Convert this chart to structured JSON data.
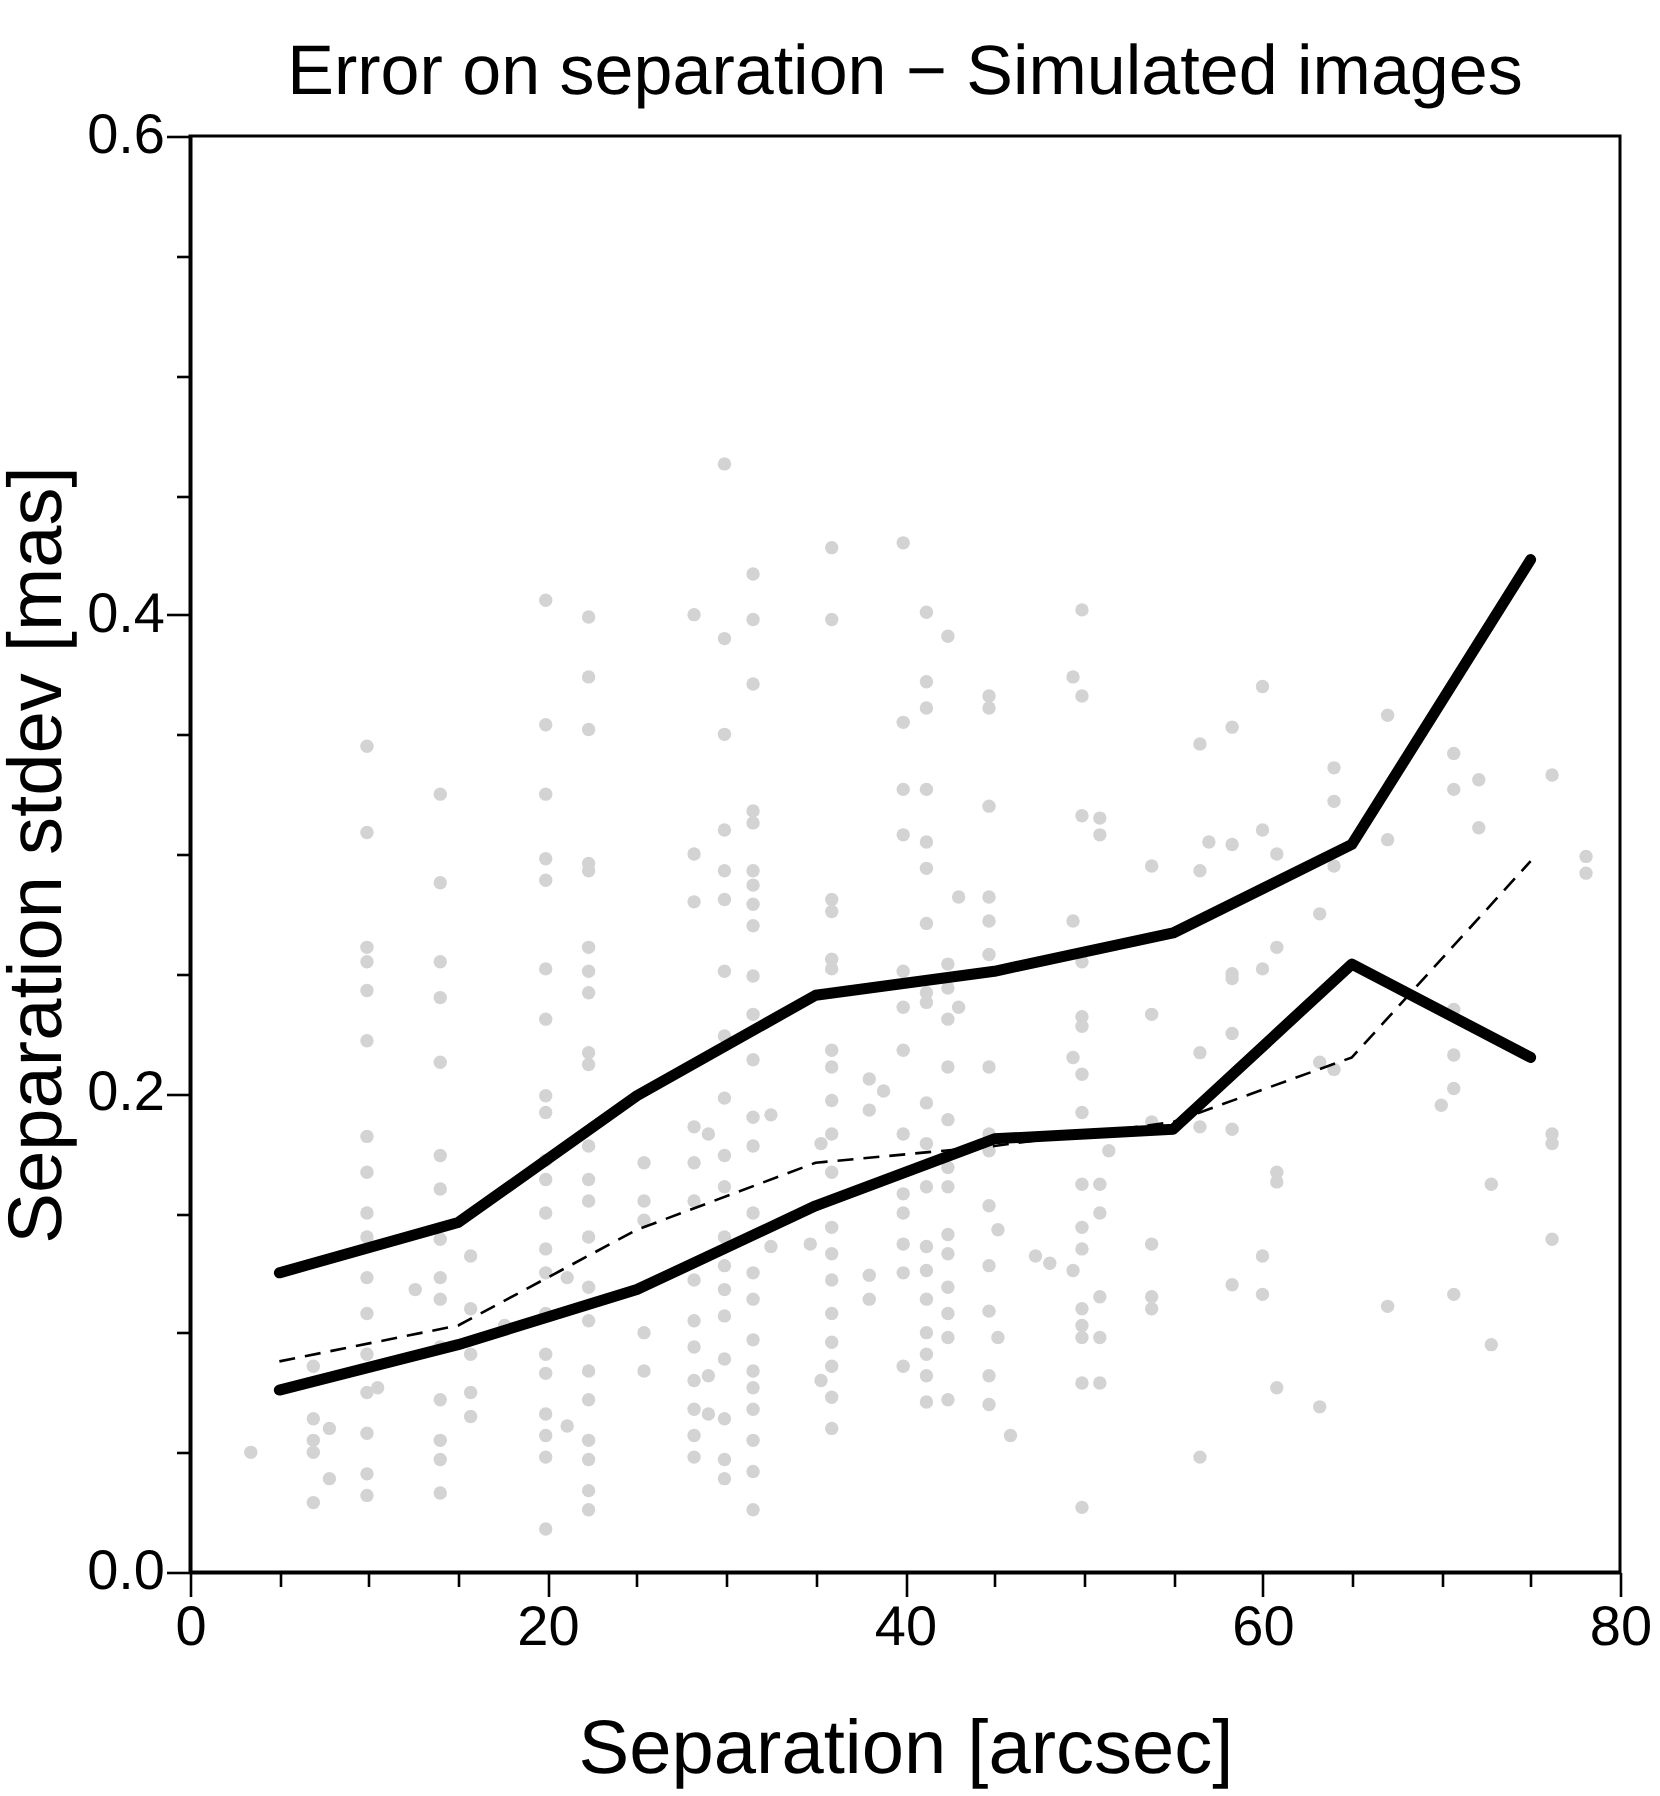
{
  "chart_data": {
    "type": "scatter",
    "title": "Error on separation − Simulated images",
    "xlabel": "Separation [arcsec]",
    "ylabel": "Separation stdev [mas]",
    "xlim": [
      0,
      80
    ],
    "ylim": [
      0,
      0.6
    ],
    "xticks": [
      0,
      {
        "value": 5,
        "label": null
      },
      {
        "value": 10,
        "label": null
      },
      {
        "value": 15,
        "label": null
      },
      20,
      {
        "value": 25,
        "label": null
      },
      {
        "value": 30,
        "label": null
      },
      {
        "value": 35,
        "label": null
      },
      40,
      {
        "value": 45,
        "label": null
      },
      {
        "value": 50,
        "label": null
      },
      {
        "value": 55,
        "label": null
      },
      60,
      {
        "value": 65,
        "label": null
      },
      {
        "value": 70,
        "label": null
      },
      {
        "value": 75,
        "label": null
      },
      80
    ],
    "yticks": [
      {
        "value": 0,
        "label": "0.0"
      },
      {
        "value": 0.05,
        "label": null
      },
      {
        "value": 0.1,
        "label": null
      },
      {
        "value": 0.15,
        "label": null
      },
      0.2,
      {
        "value": 0.25,
        "label": null
      },
      {
        "value": 0.3,
        "label": null
      },
      {
        "value": 0.35,
        "label": null
      },
      0.4,
      {
        "value": 0.45,
        "label": null
      },
      {
        "value": 0.5,
        "label": null
      },
      {
        "value": 0.55,
        "label": null
      },
      0.6
    ],
    "grid": false,
    "series": [
      {
        "marker": "circle",
        "color": "#d3d3d3",
        "x": [
          3.4,
          6.9,
          6.9,
          6.9,
          6.9,
          6.9,
          7.8,
          7.8,
          9.9,
          9.9,
          9.9,
          9.9,
          9.9,
          9.9,
          9.9,
          9.9,
          9.9,
          9.9,
          9.9,
          9.9,
          9.9,
          9.9,
          9.9,
          9.9,
          9.9,
          10.5,
          12.6,
          14.0,
          14.0,
          14.0,
          14.0,
          14.0,
          14.0,
          14.0,
          14.0,
          14.0,
          14.0,
          14.0,
          14.0,
          14.0,
          14.0,
          14.0,
          15.7,
          15.7,
          15.7,
          15.7,
          15.7,
          17.6,
          19.9,
          19.9,
          19.9,
          19.9,
          19.9,
          19.9,
          19.9,
          19.9,
          19.9,
          19.9,
          19.9,
          19.9,
          19.9,
          19.9,
          19.9,
          19.9,
          19.9,
          19.9,
          19.9,
          19.9,
          19.9,
          21.1,
          21.1,
          22.3,
          22.3,
          22.3,
          22.3,
          22.3,
          22.3,
          22.3,
          22.3,
          22.3,
          22.3,
          22.3,
          22.3,
          22.3,
          22.3,
          22.3,
          22.3,
          22.3,
          22.3,
          22.3,
          22.3,
          22.3,
          22.3,
          25.4,
          25.4,
          25.4,
          25.4,
          25.4,
          28.2,
          28.2,
          28.2,
          28.2,
          28.2,
          28.2,
          28.2,
          28.2,
          28.2,
          28.2,
          28.2,
          28.2,
          28.2,
          29.0,
          29.0,
          29.0,
          29.9,
          29.9,
          29.9,
          29.9,
          29.9,
          29.9,
          29.9,
          29.9,
          29.9,
          29.9,
          29.9,
          29.9,
          29.9,
          29.9,
          29.9,
          29.9,
          29.9,
          29.9,
          29.9,
          31.5,
          31.5,
          31.5,
          31.5,
          31.5,
          31.5,
          31.5,
          31.5,
          31.5,
          31.5,
          31.5,
          31.5,
          31.5,
          31.5,
          31.5,
          31.5,
          31.5,
          31.5,
          31.5,
          31.5,
          31.5,
          31.5,
          31.5,
          31.5,
          32.5,
          32.5,
          34.7,
          35.3,
          35.3,
          35.9,
          35.9,
          35.9,
          35.9,
          35.9,
          35.9,
          35.9,
          35.9,
          35.9,
          35.9,
          35.9,
          35.9,
          35.9,
          35.9,
          35.9,
          35.9,
          35.9,
          35.9,
          35.9,
          38.0,
          38.0,
          38.0,
          38.0,
          38.8,
          39.9,
          39.9,
          39.9,
          39.9,
          39.9,
          39.9,
          39.9,
          39.9,
          39.9,
          39.9,
          39.9,
          39.9,
          39.9,
          41.2,
          41.2,
          41.2,
          41.2,
          41.2,
          41.2,
          41.2,
          41.2,
          41.2,
          41.2,
          41.2,
          41.2,
          41.2,
          41.2,
          41.2,
          41.2,
          41.2,
          41.2,
          41.2,
          42.4,
          42.4,
          42.4,
          42.4,
          42.4,
          42.4,
          42.4,
          42.4,
          42.4,
          42.4,
          42.4,
          42.4,
          42.4,
          42.4,
          43.0,
          43.0,
          44.7,
          44.7,
          44.7,
          44.7,
          44.7,
          44.7,
          44.7,
          44.7,
          44.7,
          44.7,
          44.7,
          44.7,
          44.7,
          44.7,
          45.2,
          45.2,
          45.9,
          47.3,
          48.1,
          49.4,
          49.4,
          49.4,
          49.4,
          49.9,
          49.9,
          49.9,
          49.9,
          49.9,
          49.9,
          49.9,
          49.9,
          49.9,
          49.9,
          49.9,
          49.9,
          49.9,
          49.9,
          49.9,
          49.9,
          50.9,
          50.9,
          50.9,
          50.9,
          50.9,
          50.9,
          50.9,
          51.4,
          53.8,
          53.8,
          53.8,
          53.8,
          53.8,
          53.8,
          56.5,
          56.5,
          56.5,
          56.5,
          56.5,
          57.0,
          58.3,
          58.3,
          58.3,
          58.3,
          58.3,
          58.3,
          58.3,
          60.0,
          60.0,
          60.0,
          60.0,
          60.0,
          60.8,
          60.8,
          60.8,
          60.8,
          60.8,
          63.2,
          63.2,
          63.2,
          64.0,
          64.0,
          64.0,
          64.0,
          67.0,
          67.0,
          67.0,
          70.0,
          70.7,
          70.7,
          70.7,
          70.7,
          70.7,
          70.7,
          72.1,
          72.1,
          72.8,
          72.8,
          76.2,
          76.2,
          76.2,
          76.2,
          78.1,
          78.1
        ],
        "values": [
          0.05,
          0.086,
          0.064,
          0.055,
          0.05,
          0.029,
          0.06,
          0.039,
          0.345,
          0.309,
          0.261,
          0.255,
          0.243,
          0.222,
          0.182,
          0.167,
          0.15,
          0.14,
          0.123,
          0.108,
          0.091,
          0.075,
          0.058,
          0.041,
          0.032,
          0.077,
          0.118,
          0.325,
          0.288,
          0.255,
          0.24,
          0.213,
          0.174,
          0.16,
          0.139,
          0.123,
          0.114,
          0.094,
          0.072,
          0.055,
          0.047,
          0.033,
          0.132,
          0.11,
          0.091,
          0.075,
          0.065,
          0.103,
          0.406,
          0.354,
          0.325,
          0.298,
          0.289,
          0.252,
          0.231,
          0.199,
          0.192,
          0.172,
          0.164,
          0.15,
          0.135,
          0.125,
          0.108,
          0.091,
          0.083,
          0.066,
          0.057,
          0.048,
          0.018,
          0.123,
          0.061,
          0.399,
          0.374,
          0.352,
          0.296,
          0.293,
          0.261,
          0.251,
          0.242,
          0.217,
          0.212,
          0.178,
          0.164,
          0.155,
          0.14,
          0.119,
          0.105,
          0.084,
          0.072,
          0.055,
          0.047,
          0.034,
          0.026,
          0.171,
          0.155,
          0.147,
          0.1,
          0.084,
          0.4,
          0.3,
          0.28,
          0.186,
          0.171,
          0.155,
          0.122,
          0.105,
          0.094,
          0.08,
          0.068,
          0.057,
          0.048,
          0.183,
          0.082,
          0.066,
          0.463,
          0.39,
          0.35,
          0.31,
          0.293,
          0.281,
          0.251,
          0.224,
          0.198,
          0.174,
          0.161,
          0.14,
          0.128,
          0.118,
          0.107,
          0.089,
          0.064,
          0.047,
          0.039,
          0.417,
          0.398,
          0.371,
          0.318,
          0.313,
          0.293,
          0.287,
          0.279,
          0.27,
          0.249,
          0.233,
          0.214,
          0.19,
          0.178,
          0.15,
          0.125,
          0.114,
          0.097,
          0.084,
          0.077,
          0.068,
          0.055,
          0.042,
          0.026,
          0.191,
          0.136,
          0.137,
          0.179,
          0.08,
          0.428,
          0.398,
          0.281,
          0.276,
          0.256,
          0.252,
          0.218,
          0.211,
          0.197,
          0.183,
          0.167,
          0.144,
          0.133,
          0.122,
          0.108,
          0.096,
          0.086,
          0.073,
          0.06,
          0.206,
          0.193,
          0.124,
          0.114,
          0.201,
          0.43,
          0.355,
          0.327,
          0.308,
          0.251,
          0.236,
          0.218,
          0.183,
          0.158,
          0.15,
          0.137,
          0.125,
          0.086,
          0.401,
          0.372,
          0.361,
          0.327,
          0.305,
          0.294,
          0.271,
          0.242,
          0.238,
          0.196,
          0.179,
          0.161,
          0.136,
          0.126,
          0.114,
          0.1,
          0.091,
          0.082,
          0.071,
          0.391,
          0.254,
          0.244,
          0.231,
          0.211,
          0.189,
          0.169,
          0.161,
          0.141,
          0.133,
          0.119,
          0.108,
          0.098,
          0.072,
          0.282,
          0.236,
          0.366,
          0.361,
          0.32,
          0.282,
          0.272,
          0.258,
          0.211,
          0.183,
          0.176,
          0.153,
          0.128,
          0.109,
          0.082,
          0.07,
          0.143,
          0.098,
          0.057,
          0.132,
          0.129,
          0.374,
          0.272,
          0.215,
          0.126,
          0.402,
          0.366,
          0.316,
          0.255,
          0.232,
          0.228,
          0.208,
          0.192,
          0.162,
          0.144,
          0.135,
          0.11,
          0.103,
          0.098,
          0.079,
          0.027,
          0.315,
          0.308,
          0.162,
          0.15,
          0.115,
          0.098,
          0.079,
          0.176,
          0.295,
          0.233,
          0.188,
          0.137,
          0.115,
          0.11,
          0.346,
          0.293,
          0.217,
          0.186,
          0.048,
          0.305,
          0.353,
          0.304,
          0.25,
          0.248,
          0.225,
          0.185,
          0.12,
          0.37,
          0.31,
          0.252,
          0.132,
          0.116,
          0.3,
          0.261,
          0.167,
          0.163,
          0.077,
          0.275,
          0.213,
          0.069,
          0.336,
          0.322,
          0.295,
          0.21,
          0.358,
          0.306,
          0.111,
          0.195,
          0.342,
          0.327,
          0.235,
          0.216,
          0.202,
          0.116,
          0.331,
          0.311,
          0.162,
          0.095,
          0.333,
          0.183,
          0.179,
          0.139,
          0.299,
          0.292
        ]
      },
      {
        "type": "line",
        "line_style": "solid",
        "color": "#000000",
        "x": [
          5,
          15,
          25,
          35,
          45,
          55,
          65,
          75
        ],
        "values": [
          0.125,
          0.146,
          0.199,
          0.241,
          0.251,
          0.267,
          0.304,
          0.423
        ]
      },
      {
        "type": "line",
        "line_style": "solid",
        "color": "#000000",
        "x": [
          5,
          15,
          25,
          35,
          45,
          55,
          65,
          75
        ],
        "values": [
          0.076,
          0.095,
          0.118,
          0.153,
          0.181,
          0.185,
          0.254,
          0.215
        ]
      },
      {
        "type": "line",
        "line_style": "dashed",
        "color": "#000000",
        "x": [
          5,
          15,
          25,
          35,
          45,
          55,
          65,
          75
        ],
        "values": [
          0.088,
          0.103,
          0.143,
          0.171,
          0.178,
          0.188,
          0.215,
          0.297
        ]
      }
    ]
  }
}
